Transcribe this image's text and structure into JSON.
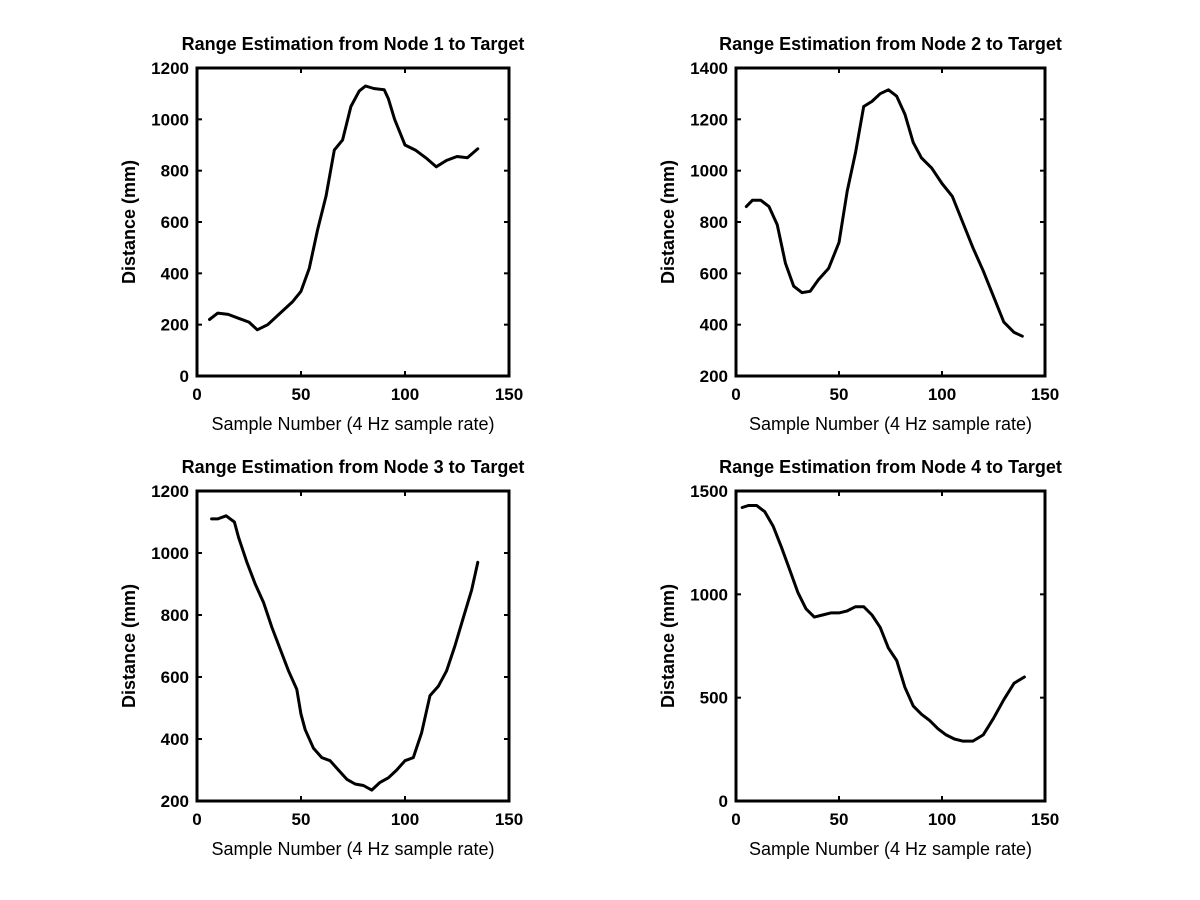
{
  "colors": {
    "background": "#ffffff",
    "line": "#000000",
    "axes": "#000000"
  },
  "chart_data": [
    {
      "type": "line",
      "title": "Range Estimation from Node 1 to Target",
      "xlabel": "Sample Number (4 Hz sample rate)",
      "ylabel": "Distance (mm)",
      "xlim": [
        0,
        150
      ],
      "ylim": [
        0,
        1200
      ],
      "xticks": [
        0,
        50,
        100,
        150
      ],
      "yticks": [
        0,
        200,
        400,
        600,
        800,
        1000,
        1200
      ],
      "grid": false,
      "series": [
        {
          "name": "Node 1",
          "x": [
            6,
            10,
            15,
            20,
            25,
            29,
            34,
            40,
            46,
            50,
            54,
            58,
            62,
            66,
            70,
            74,
            78,
            81,
            85,
            90,
            92,
            95,
            100,
            105,
            110,
            115,
            120,
            125,
            130,
            135
          ],
          "y": [
            220,
            245,
            240,
            225,
            210,
            180,
            200,
            245,
            290,
            330,
            420,
            570,
            700,
            880,
            920,
            1050,
            1110,
            1130,
            1120,
            1115,
            1080,
            1000,
            900,
            880,
            850,
            815,
            840,
            855,
            850,
            885
          ]
        }
      ]
    },
    {
      "type": "line",
      "title": "Range Estimation from Node 2 to Target",
      "xlabel": "Sample Number (4 Hz sample rate)",
      "ylabel": "Distance (mm)",
      "xlim": [
        0,
        150
      ],
      "ylim": [
        200,
        1400
      ],
      "xticks": [
        0,
        50,
        100,
        150
      ],
      "yticks": [
        200,
        400,
        600,
        800,
        1000,
        1200,
        1400
      ],
      "grid": false,
      "series": [
        {
          "name": "Node 2",
          "x": [
            5,
            8,
            12,
            16,
            20,
            24,
            28,
            32,
            36,
            40,
            45,
            50,
            54,
            58,
            62,
            66,
            70,
            74,
            78,
            82,
            86,
            90,
            95,
            100,
            105,
            110,
            115,
            120,
            125,
            130,
            135,
            139
          ],
          "y": [
            860,
            885,
            885,
            860,
            790,
            640,
            550,
            525,
            530,
            575,
            620,
            720,
            920,
            1070,
            1250,
            1270,
            1300,
            1315,
            1290,
            1220,
            1110,
            1050,
            1010,
            950,
            900,
            800,
            700,
            610,
            510,
            410,
            370,
            355
          ]
        }
      ]
    },
    {
      "type": "line",
      "title": "Range Estimation from Node 3 to Target",
      "xlabel": "Sample Number (4 Hz sample rate)",
      "ylabel": "Distance (mm)",
      "xlim": [
        0,
        150
      ],
      "ylim": [
        200,
        1200
      ],
      "xticks": [
        0,
        50,
        100,
        150
      ],
      "yticks": [
        200,
        400,
        600,
        800,
        1000,
        1200
      ],
      "grid": false,
      "series": [
        {
          "name": "Node 3",
          "x": [
            7,
            10,
            14,
            18,
            20,
            24,
            28,
            32,
            36,
            40,
            44,
            48,
            50,
            52,
            56,
            60,
            64,
            68,
            72,
            76,
            80,
            84,
            88,
            92,
            96,
            100,
            104,
            108,
            112,
            116,
            120,
            124,
            128,
            132,
            135
          ],
          "y": [
            1110,
            1110,
            1120,
            1100,
            1050,
            970,
            900,
            840,
            760,
            690,
            620,
            560,
            480,
            430,
            370,
            340,
            330,
            300,
            270,
            255,
            250,
            235,
            260,
            275,
            300,
            330,
            340,
            420,
            540,
            570,
            620,
            700,
            790,
            880,
            970
          ]
        }
      ]
    },
    {
      "type": "line",
      "title": "Range Estimation from Node 4 to Target",
      "xlabel": "Sample Number (4 Hz sample rate)",
      "ylabel": "Distance (mm)",
      "xlim": [
        0,
        150
      ],
      "ylim": [
        0,
        1500
      ],
      "xticks": [
        0,
        50,
        100,
        150
      ],
      "yticks": [
        0,
        500,
        1000,
        1500
      ],
      "grid": false,
      "series": [
        {
          "name": "Node 4",
          "x": [
            3,
            6,
            10,
            14,
            18,
            22,
            26,
            30,
            34,
            38,
            42,
            46,
            50,
            54,
            58,
            62,
            66,
            70,
            74,
            78,
            82,
            86,
            90,
            94,
            98,
            102,
            106,
            110,
            115,
            120,
            125,
            130,
            135,
            140
          ],
          "y": [
            1420,
            1430,
            1430,
            1400,
            1330,
            1230,
            1120,
            1010,
            930,
            890,
            900,
            910,
            910,
            920,
            940,
            940,
            900,
            840,
            740,
            680,
            550,
            460,
            420,
            390,
            350,
            320,
            300,
            290,
            290,
            320,
            400,
            490,
            570,
            600
          ]
        }
      ]
    }
  ]
}
